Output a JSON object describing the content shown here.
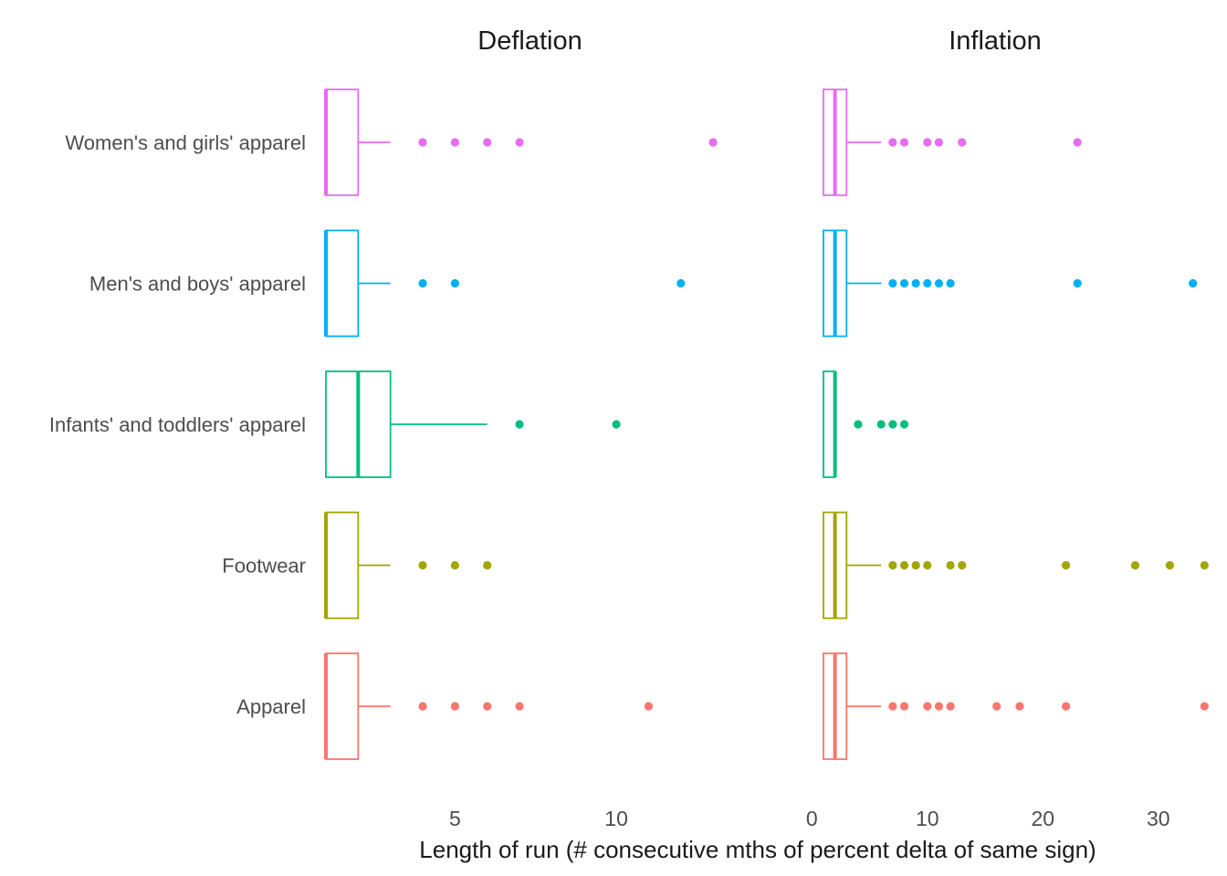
{
  "chart_data": {
    "type": "boxplot",
    "xlabel": "Length of run (# consecutive mths of percent delta of same sign)",
    "ylabel": "",
    "grid": false,
    "legend": "none",
    "categories": [
      "Women's and girls' apparel",
      "Men's and boys' apparel",
      "Infants' and toddlers' apparel",
      "Footwear",
      "Apparel"
    ],
    "colors": {
      "Women's and girls' apparel": "#e76bf3",
      "Men's and boys' apparel": "#00b0f6",
      "Infants' and toddlers' apparel": "#00bf7d",
      "Footwear": "#a3a500",
      "Apparel": "#f8766d"
    },
    "facets": [
      {
        "title": "Deflation",
        "xlim": [
          1,
          14.1
        ],
        "xticks": [
          5,
          10
        ],
        "boxes": [
          {
            "category": "Women's and girls' apparel",
            "q1": 1,
            "median": 1,
            "q3": 2,
            "whisker_low": 1,
            "whisker_high": 3,
            "outliers": [
              4,
              5,
              6,
              7,
              13
            ]
          },
          {
            "category": "Men's and boys' apparel",
            "q1": 1,
            "median": 1,
            "q3": 2,
            "whisker_low": 1,
            "whisker_high": 3,
            "outliers": [
              4,
              5,
              12
            ]
          },
          {
            "category": "Infants' and toddlers' apparel",
            "q1": 1,
            "median": 2,
            "q3": 3,
            "whisker_low": 1,
            "whisker_high": 6,
            "outliers": [
              7,
              10
            ]
          },
          {
            "category": "Footwear",
            "q1": 1,
            "median": 1,
            "q3": 2,
            "whisker_low": 1,
            "whisker_high": 3,
            "outliers": [
              4,
              5,
              6
            ]
          },
          {
            "category": "Apparel",
            "q1": 1,
            "median": 1,
            "q3": 2,
            "whisker_low": 1,
            "whisker_high": 3,
            "outliers": [
              4,
              5,
              6,
              7,
              11
            ]
          }
        ]
      },
      {
        "title": "Inflation",
        "xlim": [
          -0.5,
          33.5
        ],
        "xticks": [
          0,
          10,
          20,
          30
        ],
        "boxes": [
          {
            "category": "Women's and girls' apparel",
            "q1": 1,
            "median": 2,
            "q3": 3,
            "whisker_low": 1,
            "whisker_high": 6,
            "outliers": [
              7,
              8,
              10,
              11,
              13,
              23
            ]
          },
          {
            "category": "Men's and boys' apparel",
            "q1": 1,
            "median": 2,
            "q3": 3,
            "whisker_low": 1,
            "whisker_high": 6,
            "outliers": [
              7,
              8,
              9,
              10,
              11,
              12,
              23,
              33
            ]
          },
          {
            "category": "Infants' and toddlers' apparel",
            "q1": 1,
            "median": 2,
            "q3": 2,
            "whisker_low": 1,
            "whisker_high": 2,
            "outliers": [
              4,
              6,
              7,
              8
            ]
          },
          {
            "category": "Footwear",
            "q1": 1,
            "median": 2,
            "q3": 3,
            "whisker_low": 1,
            "whisker_high": 6,
            "outliers": [
              7,
              8,
              9,
              10,
              12,
              13,
              22,
              28,
              31,
              34
            ]
          },
          {
            "category": "Apparel",
            "q1": 1,
            "median": 2,
            "q3": 3,
            "whisker_low": 1,
            "whisker_high": 6,
            "outliers": [
              7,
              8,
              10,
              11,
              12,
              16,
              18,
              22,
              34
            ]
          }
        ]
      }
    ]
  }
}
